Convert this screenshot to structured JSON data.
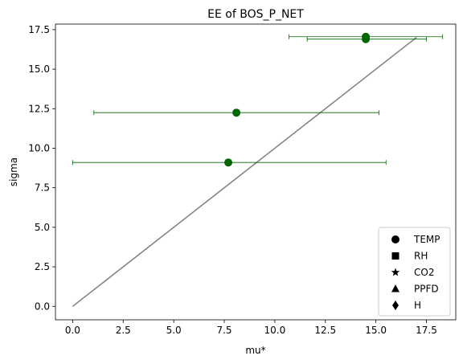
{
  "chart_data": {
    "type": "scatter",
    "title": "EE of BOS_P_NET",
    "xlabel": "mu*",
    "ylabel": "sigma",
    "xlim": [
      -0.85,
      18.95
    ],
    "ylim": [
      -0.85,
      17.85
    ],
    "xticks": [
      0.0,
      2.5,
      5.0,
      7.5,
      10.0,
      12.5,
      15.0,
      17.5
    ],
    "xtick_labels": [
      "0.0",
      "2.5",
      "5.0",
      "7.5",
      "10.0",
      "12.5",
      "15.0",
      "17.5"
    ],
    "yticks": [
      0.0,
      2.5,
      5.0,
      7.5,
      10.0,
      12.5,
      15.0,
      17.5
    ],
    "ytick_labels": [
      "0.0",
      "2.5",
      "5.0",
      "7.5",
      "10.0",
      "12.5",
      "15.0",
      "17.5"
    ],
    "grid": false,
    "reference_line": {
      "x": [
        0,
        17
      ],
      "y": [
        0,
        17
      ],
      "color": "#808080"
    },
    "series": [
      {
        "marker": "circle",
        "color": "#006400",
        "points": [
          {
            "x": 14.5,
            "y": 17.05,
            "xerr_low": 10.7,
            "xerr_high": 18.3
          },
          {
            "x": 14.5,
            "y": 16.9,
            "xerr_low": 11.6,
            "xerr_high": 17.5
          },
          {
            "x": 8.1,
            "y": 12.25,
            "xerr_low": 1.05,
            "xerr_high": 15.15
          },
          {
            "x": 7.7,
            "y": 9.1,
            "xerr_low": 0.0,
            "xerr_high": 15.5
          }
        ]
      }
    ],
    "legend": {
      "position": "lower right",
      "entries": [
        {
          "label": "TEMP",
          "marker": "circle"
        },
        {
          "label": "RH",
          "marker": "square"
        },
        {
          "label": "CO2",
          "marker": "star"
        },
        {
          "label": "PPFD",
          "marker": "triangle"
        },
        {
          "label": "H",
          "marker": "diamond"
        }
      ]
    }
  }
}
